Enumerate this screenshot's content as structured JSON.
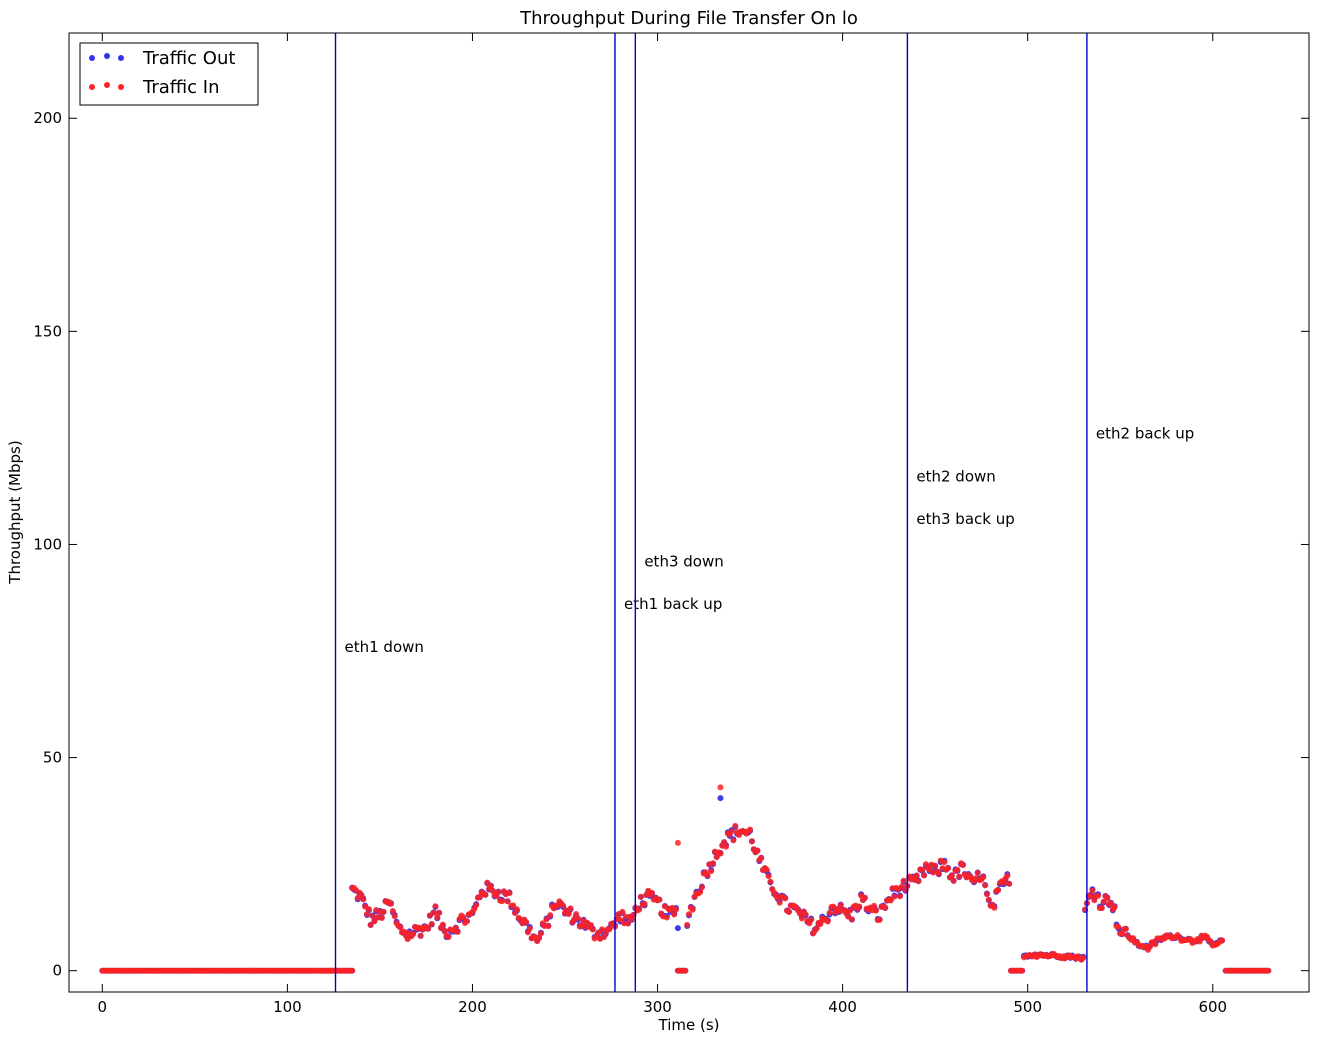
{
  "chart_data": {
    "type": "scatter",
    "title": "Throughput During File Transfer On lo",
    "xlabel": "Time (s)",
    "ylabel": "Throughput (Mbps)",
    "xlim": [
      -18,
      652
    ],
    "ylim": [
      -5,
      220
    ],
    "xticks": [
      0,
      100,
      200,
      300,
      400,
      500,
      600
    ],
    "yticks": [
      0,
      50,
      100,
      150,
      200
    ],
    "grid": false,
    "legend_position": "top-left",
    "series": [
      {
        "name": "Traffic Out",
        "color": "#3333ee"
      },
      {
        "name": "Traffic In",
        "color": "#ff2222"
      }
    ],
    "events": [
      {
        "x": 126,
        "label": "eth1 down",
        "label_y": 76
      },
      {
        "x": 277,
        "label": "eth1 back up",
        "label_y": 86
      },
      {
        "x": 288,
        "label": "eth3 down",
        "label_y": 96
      },
      {
        "x": 435,
        "label": "eth2 down",
        "label_y": 116
      },
      {
        "x": 435,
        "label": "eth3 back up",
        "label_y": 106
      },
      {
        "x": 532,
        "label": "eth2 back up",
        "label_y": 126
      }
    ],
    "event_line_color": "#0000cc",
    "segments": [
      {
        "x_start": 0,
        "x_end": 135,
        "y": 0
      },
      {
        "x_start": 135,
        "x_end": 310,
        "keys": [
          [
            135,
            19
          ],
          [
            140,
            17
          ],
          [
            145,
            12
          ],
          [
            150,
            13
          ],
          [
            155,
            16
          ],
          [
            160,
            10
          ],
          [
            165,
            8.5
          ],
          [
            170,
            9.5
          ],
          [
            175,
            10
          ],
          [
            180,
            14
          ],
          [
            185,
            9
          ],
          [
            190,
            10
          ],
          [
            195,
            12
          ],
          [
            200,
            13
          ],
          [
            205,
            19
          ],
          [
            210,
            19
          ],
          [
            215,
            18
          ],
          [
            220,
            17
          ],
          [
            225,
            13
          ],
          [
            230,
            10
          ],
          [
            235,
            7
          ],
          [
            240,
            11
          ],
          [
            245,
            16
          ],
          [
            250,
            14
          ],
          [
            255,
            12.5
          ],
          [
            260,
            11
          ],
          [
            265,
            9
          ],
          [
            270,
            9
          ],
          [
            275,
            10
          ],
          [
            280,
            13
          ],
          [
            285,
            11
          ],
          [
            290,
            16
          ],
          [
            295,
            17
          ],
          [
            300,
            16
          ],
          [
            305,
            13
          ],
          [
            310,
            14
          ]
        ]
      },
      {
        "x_start": 311,
        "x_end": 315,
        "y": 0
      },
      {
        "x_start": 316,
        "x_end": 490,
        "keys": [
          [
            316,
            12
          ],
          [
            320,
            17
          ],
          [
            325,
            22
          ],
          [
            330,
            26
          ],
          [
            335,
            30
          ],
          [
            340,
            32
          ],
          [
            345,
            33
          ],
          [
            350,
            32
          ],
          [
            355,
            26
          ],
          [
            360,
            21
          ],
          [
            365,
            18
          ],
          [
            370,
            15
          ],
          [
            375,
            14
          ],
          [
            380,
            12
          ],
          [
            385,
            10
          ],
          [
            390,
            12
          ],
          [
            395,
            15
          ],
          [
            400,
            14
          ],
          [
            405,
            13
          ],
          [
            410,
            17
          ],
          [
            415,
            14
          ],
          [
            420,
            13
          ],
          [
            425,
            17
          ],
          [
            430,
            19
          ],
          [
            435,
            20
          ],
          [
            440,
            21
          ],
          [
            445,
            24
          ],
          [
            450,
            23
          ],
          [
            455,
            25
          ],
          [
            460,
            22
          ],
          [
            465,
            24
          ],
          [
            470,
            20
          ],
          [
            475,
            23
          ],
          [
            480,
            14
          ],
          [
            485,
            19
          ],
          [
            490,
            22
          ]
        ]
      },
      {
        "x_start": 491,
        "x_end": 497,
        "y": 0
      },
      {
        "x_start": 498,
        "x_end": 530,
        "keys": [
          [
            498,
            3.5
          ],
          [
            505,
            3.8
          ],
          [
            512,
            3.6
          ],
          [
            520,
            3.4
          ],
          [
            530,
            3
          ]
        ]
      },
      {
        "x_start": 531,
        "x_end": 605,
        "keys": [
          [
            531,
            14
          ],
          [
            535,
            19
          ],
          [
            540,
            16
          ],
          [
            545,
            17
          ],
          [
            550,
            9
          ],
          [
            555,
            8
          ],
          [
            560,
            6
          ],
          [
            565,
            5.5
          ],
          [
            570,
            7
          ],
          [
            575,
            8
          ],
          [
            580,
            8
          ],
          [
            585,
            7.5
          ],
          [
            590,
            7
          ],
          [
            595,
            8
          ],
          [
            600,
            6
          ],
          [
            605,
            7
          ]
        ]
      },
      {
        "x_start": 607,
        "x_end": 630,
        "y": 0
      }
    ],
    "outliers": [
      {
        "x": 311,
        "in": 30,
        "out": 10
      },
      {
        "x": 334,
        "in": 43,
        "out": 40.5
      }
    ]
  }
}
